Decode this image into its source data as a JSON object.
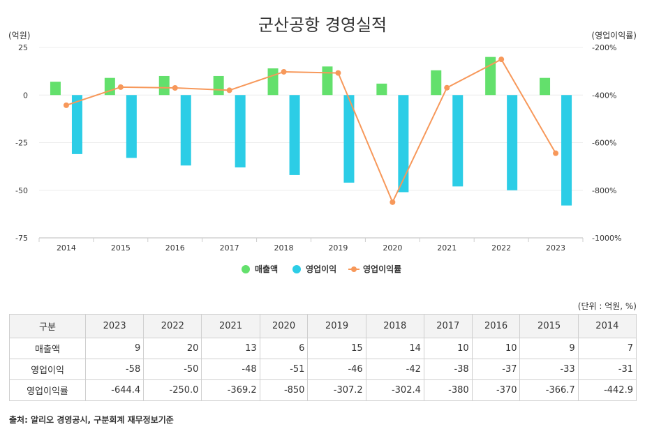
{
  "chart_data": {
    "type": "bar",
    "title": "군산공항 경영실적",
    "ylabel_left": "(억원)",
    "ylabel_right": "(영업이익률)",
    "y_left_range": [
      -75,
      25
    ],
    "y_left_ticks": [
      "25",
      "0",
      "-25",
      "-50",
      "-75"
    ],
    "y_right_range": [
      -1000,
      -200
    ],
    "y_right_ticks": [
      "-200%",
      "-400%",
      "-600%",
      "-800%",
      "-1000%"
    ],
    "categories": [
      "2014",
      "2015",
      "2016",
      "2017",
      "2018",
      "2019",
      "2020",
      "2021",
      "2022",
      "2023"
    ],
    "series": [
      {
        "name": "매출액",
        "type": "bar",
        "color": "#63e06c",
        "values": [
          7,
          9,
          10,
          10,
          14,
          15,
          6,
          13,
          20,
          9
        ]
      },
      {
        "name": "영업이익",
        "type": "bar",
        "color": "#2ccde6",
        "values": [
          -31,
          -33,
          -37,
          -38,
          -42,
          -46,
          -51,
          -48,
          -50,
          -58
        ]
      },
      {
        "name": "영업이익률",
        "type": "line",
        "color": "#f7985a",
        "values": [
          -442.9,
          -366.7,
          -370,
          -380,
          -302.4,
          -307.2,
          -850,
          -369.2,
          -250.0,
          -644.4
        ]
      }
    ],
    "legend_position": "bottom"
  },
  "table": {
    "unit": "(단위 : 억원, %)",
    "header": [
      "구분",
      "2023",
      "2022",
      "2021",
      "2020",
      "2019",
      "2018",
      "2017",
      "2016",
      "2015",
      "2014"
    ],
    "rows": [
      {
        "label": "매출액",
        "cells": [
          "9",
          "20",
          "13",
          "6",
          "15",
          "14",
          "10",
          "10",
          "9",
          "7"
        ]
      },
      {
        "label": "영업이익",
        "cells": [
          "-58",
          "-50",
          "-48",
          "-51",
          "-46",
          "-42",
          "-38",
          "-37",
          "-33",
          "-31"
        ]
      },
      {
        "label": "영업이익률",
        "cells": [
          "-644.4",
          "-250.0",
          "-369.2",
          "-850",
          "-307.2",
          "-302.4",
          "-380",
          "-370",
          "-366.7",
          "-442.9"
        ]
      }
    ]
  },
  "source": "출처: 알리오 경영공시, 구분회계 재무정보기준"
}
